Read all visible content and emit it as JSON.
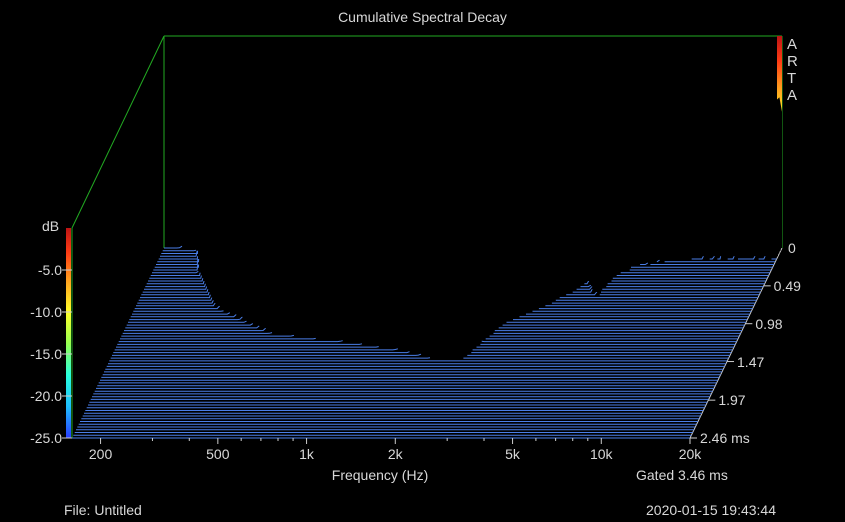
{
  "chart_data": {
    "type": "waterfall-3d",
    "title": "Cumulative Spectral Decay",
    "xlabel": "Frequency (Hz)",
    "x_scale": "log",
    "xlim": [
      160,
      20000
    ],
    "x_ticks": [
      "200",
      "500",
      "1k",
      "2k",
      "5k",
      "10k",
      "20k"
    ],
    "x_tick_values": [
      200,
      500,
      1000,
      2000,
      5000,
      10000,
      20000
    ],
    "x_minor_ticks": [
      300,
      400,
      600,
      700,
      800,
      900,
      3000,
      4000,
      6000,
      7000,
      8000,
      9000
    ],
    "colorbar_label": "dB",
    "z_ticks": [
      "-5.0",
      "-10.0",
      "-15.0",
      "-20.0",
      "-25.0"
    ],
    "z_tick_values": [
      -5,
      -10,
      -15,
      -20,
      -25
    ],
    "zlim": [
      -25,
      0
    ],
    "z_axis_right_tick": "0",
    "time_ticks": [
      "0.49",
      "0.98",
      "1.47",
      "1.97",
      "2.46 ms"
    ],
    "time_tick_values": [
      0.49,
      0.98,
      1.47,
      1.97,
      2.46
    ],
    "time_range_ms": [
      0,
      2.46
    ],
    "slices": 70,
    "decay_profile": {
      "frequency_hz": [
        160,
        180,
        200,
        230,
        260,
        280,
        300,
        350,
        400,
        500,
        700,
        1000,
        1500,
        2000,
        2500,
        3000,
        4000,
        5000,
        5600,
        6000,
        7000,
        8000,
        10000,
        12000,
        15000,
        20000
      ],
      "initial_level_db": [
        -25,
        -25,
        -24,
        -3.5,
        -1.0,
        -1.2,
        -1.5,
        -2.0,
        -2.3,
        -2.0,
        -2.5,
        -3.0,
        -3.5,
        -3.8,
        -4.2,
        -4.5,
        -5.0,
        -5.2,
        -5.8,
        -6.0,
        -6.5,
        -7.0,
        -7.2,
        -7.3,
        -7.5,
        -8.0
      ],
      "decay_time_ms": [
        0.05,
        0.05,
        0.05,
        0.38,
        0.55,
        0.7,
        0.82,
        0.95,
        1.06,
        1.2,
        1.3,
        1.4,
        1.55,
        1.7,
        1.72,
        1.2,
        0.9,
        0.55,
        0.82,
        0.45,
        0.3,
        0.25,
        0.2,
        0.2,
        0.2,
        0.2
      ]
    },
    "legend": "colorbar-left",
    "gate_label": "Gated 3.46 ms",
    "grid": false
  },
  "header": {
    "arta_letters": [
      "A",
      "R",
      "T",
      "A"
    ]
  },
  "footer": {
    "file": "File: Untitled",
    "datetime": "2020-01-15  19:43:44"
  },
  "colors": {
    "background": "#000000",
    "frame": "#22aa22",
    "text": "#d8d8d8",
    "floor": "#4a7ee8"
  }
}
